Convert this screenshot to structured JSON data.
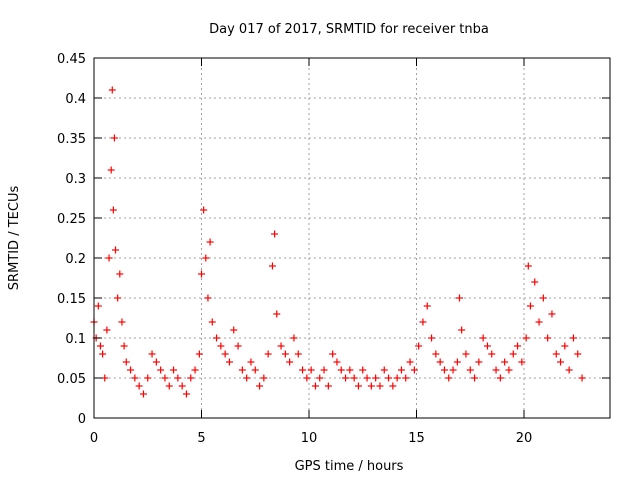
{
  "chart_data": {
    "type": "scatter",
    "title": "Day 017 of 2017, SRMTID for receiver tnba",
    "xlabel": "GPS time / hours",
    "ylabel": "SRMTID / TECUs",
    "xlim": [
      0,
      24
    ],
    "ylim": [
      0,
      0.45
    ],
    "xticks": [
      0,
      5,
      10,
      15,
      20
    ],
    "xtick_labels": [
      "0",
      "5",
      "10",
      "15",
      "20"
    ],
    "yticks": [
      0,
      0.05,
      0.1,
      0.15,
      0.2,
      0.25,
      0.3,
      0.35,
      0.4,
      0.45
    ],
    "ytick_labels": [
      "0",
      "0.05",
      "0.1",
      "0.15",
      "0.2",
      "0.25",
      "0.3",
      "0.35",
      "0.4",
      "0.45"
    ],
    "grid": true,
    "series": [
      {
        "name": "SRMTID",
        "marker": "+",
        "color": "#ff0000",
        "x": [
          0.0,
          0.1,
          0.2,
          0.3,
          0.4,
          0.5,
          0.6,
          0.7,
          0.8,
          0.85,
          0.9,
          0.95,
          1.0,
          1.1,
          1.2,
          1.3,
          1.4,
          1.5,
          1.7,
          1.9,
          2.1,
          2.3,
          2.5,
          2.7,
          2.9,
          3.1,
          3.3,
          3.5,
          3.7,
          3.9,
          4.1,
          4.3,
          4.5,
          4.7,
          4.9,
          5.0,
          5.1,
          5.2,
          5.3,
          5.4,
          5.5,
          5.7,
          5.9,
          6.1,
          6.3,
          6.5,
          6.7,
          6.9,
          7.1,
          7.3,
          7.5,
          7.7,
          7.9,
          8.1,
          8.3,
          8.4,
          8.5,
          8.7,
          8.9,
          9.1,
          9.3,
          9.5,
          9.7,
          9.9,
          10.1,
          10.3,
          10.5,
          10.7,
          10.9,
          11.1,
          11.3,
          11.5,
          11.7,
          11.9,
          12.1,
          12.3,
          12.5,
          12.7,
          12.9,
          13.1,
          13.3,
          13.5,
          13.7,
          13.9,
          14.1,
          14.3,
          14.5,
          14.7,
          14.9,
          15.1,
          15.3,
          15.5,
          15.7,
          15.9,
          16.1,
          16.3,
          16.5,
          16.7,
          16.9,
          17.0,
          17.1,
          17.3,
          17.5,
          17.7,
          17.9,
          18.1,
          18.3,
          18.5,
          18.7,
          18.9,
          19.1,
          19.3,
          19.5,
          19.7,
          19.9,
          20.1,
          20.2,
          20.3,
          20.5,
          20.7,
          20.9,
          21.1,
          21.3,
          21.5,
          21.7,
          21.9,
          22.1,
          22.3,
          22.5,
          22.7
        ],
        "y": [
          0.12,
          0.1,
          0.14,
          0.09,
          0.08,
          0.05,
          0.11,
          0.2,
          0.31,
          0.41,
          0.26,
          0.35,
          0.21,
          0.15,
          0.18,
          0.12,
          0.09,
          0.07,
          0.06,
          0.05,
          0.04,
          0.03,
          0.05,
          0.08,
          0.07,
          0.06,
          0.05,
          0.04,
          0.06,
          0.05,
          0.04,
          0.03,
          0.05,
          0.06,
          0.08,
          0.18,
          0.26,
          0.2,
          0.15,
          0.22,
          0.12,
          0.1,
          0.09,
          0.08,
          0.07,
          0.11,
          0.09,
          0.06,
          0.05,
          0.07,
          0.06,
          0.04,
          0.05,
          0.08,
          0.19,
          0.23,
          0.13,
          0.09,
          0.08,
          0.07,
          0.1,
          0.08,
          0.06,
          0.05,
          0.06,
          0.04,
          0.05,
          0.06,
          0.04,
          0.08,
          0.07,
          0.06,
          0.05,
          0.06,
          0.05,
          0.04,
          0.06,
          0.05,
          0.04,
          0.05,
          0.04,
          0.06,
          0.05,
          0.04,
          0.05,
          0.06,
          0.05,
          0.07,
          0.06,
          0.09,
          0.12,
          0.14,
          0.1,
          0.08,
          0.07,
          0.06,
          0.05,
          0.06,
          0.07,
          0.15,
          0.11,
          0.08,
          0.06,
          0.05,
          0.07,
          0.1,
          0.09,
          0.08,
          0.06,
          0.05,
          0.07,
          0.06,
          0.08,
          0.09,
          0.07,
          0.1,
          0.19,
          0.14,
          0.17,
          0.12,
          0.15,
          0.1,
          0.13,
          0.08,
          0.07,
          0.09,
          0.06,
          0.1,
          0.08,
          0.05
        ]
      }
    ]
  }
}
